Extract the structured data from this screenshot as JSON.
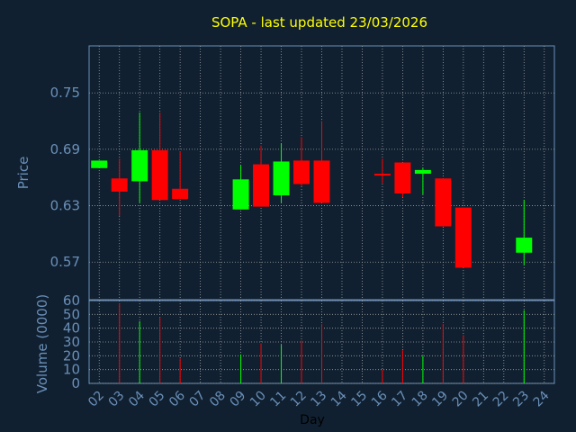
{
  "chart_data": {
    "type": "candlestick",
    "title": "SOPA - last updated 23/03/2026",
    "xlabel": "Day",
    "price_panel": {
      "ylabel": "Price",
      "ylim": [
        0.53,
        0.8
      ],
      "yticks": [
        "0.75",
        "0.69",
        "0.63",
        "0.57"
      ],
      "ytick_values": [
        0.75,
        0.69,
        0.63,
        0.57
      ],
      "grid": true
    },
    "volume_panel": {
      "ylabel": "Volume (0000)",
      "ylim": [
        0,
        60
      ],
      "yticks": [
        "60",
        "50",
        "40",
        "30",
        "20",
        "10",
        "0"
      ],
      "ytick_values": [
        60,
        50,
        40,
        30,
        20,
        10,
        0
      ],
      "grid": true
    },
    "x_ticks": [
      "02",
      "03",
      "04",
      "05",
      "06",
      "07",
      "08",
      "09",
      "10",
      "11",
      "12",
      "13",
      "14",
      "15",
      "16",
      "17",
      "18",
      "19",
      "20",
      "21",
      "22",
      "23",
      "24"
    ],
    "up_color": "#00ff00",
    "down_color": "#ff0000",
    "candles": [
      {
        "day": "02",
        "open": 0.67,
        "high": 0.678,
        "low": 0.67,
        "close": 0.678,
        "volume": 0
      },
      {
        "day": "03",
        "open": 0.659,
        "high": 0.68,
        "low": 0.619,
        "close": 0.645,
        "volume": 58
      },
      {
        "day": "04",
        "open": 0.656,
        "high": 0.729,
        "low": 0.633,
        "close": 0.689,
        "volume": 45
      },
      {
        "day": "05",
        "open": 0.689,
        "high": 0.729,
        "low": 0.636,
        "close": 0.636,
        "volume": 48
      },
      {
        "day": "06",
        "open": 0.648,
        "high": 0.688,
        "low": 0.637,
        "close": 0.637,
        "volume": 18
      },
      {
        "day": "09",
        "open": 0.626,
        "high": 0.673,
        "low": 0.626,
        "close": 0.658,
        "volume": 21
      },
      {
        "day": "10",
        "open": 0.674,
        "high": 0.694,
        "low": 0.629,
        "close": 0.629,
        "volume": 29
      },
      {
        "day": "11",
        "open": 0.641,
        "high": 0.696,
        "low": 0.633,
        "close": 0.677,
        "volume": 28
      },
      {
        "day": "12",
        "open": 0.678,
        "high": 0.703,
        "low": 0.651,
        "close": 0.653,
        "volume": 31
      },
      {
        "day": "13",
        "open": 0.678,
        "high": 0.72,
        "low": 0.633,
        "close": 0.633,
        "volume": 43
      },
      {
        "day": "16",
        "open": 0.664,
        "high": 0.68,
        "low": 0.654,
        "close": 0.662,
        "volume": 10
      },
      {
        "day": "17",
        "open": 0.676,
        "high": 0.676,
        "low": 0.639,
        "close": 0.643,
        "volume": 24
      },
      {
        "day": "18",
        "open": 0.664,
        "high": 0.67,
        "low": 0.642,
        "close": 0.668,
        "volume": 20
      },
      {
        "day": "19",
        "open": 0.659,
        "high": 0.659,
        "low": 0.608,
        "close": 0.608,
        "volume": 43
      },
      {
        "day": "20",
        "open": 0.628,
        "high": 0.628,
        "low": 0.564,
        "close": 0.564,
        "volume": 35
      },
      {
        "day": "23",
        "open": 0.58,
        "high": 0.636,
        "low": 0.567,
        "close": 0.596,
        "volume": 53
      }
    ]
  }
}
